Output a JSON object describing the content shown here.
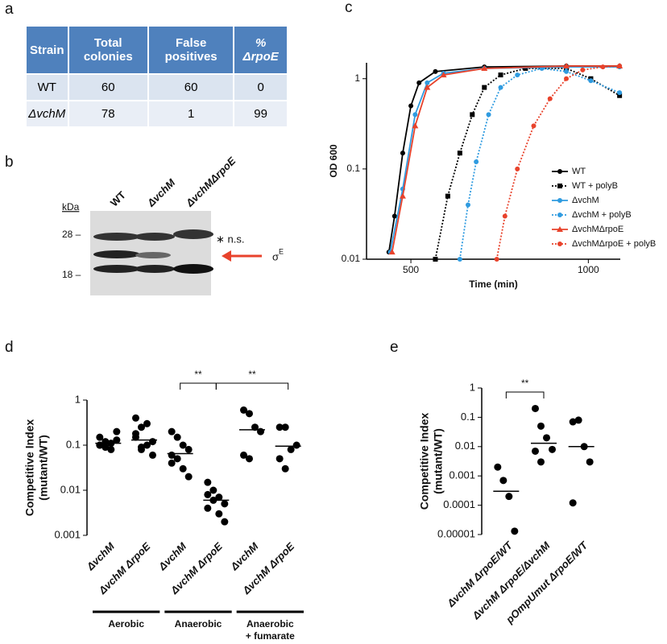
{
  "panel_labels": [
    "a",
    "b",
    "c",
    "d",
    "e"
  ],
  "table": {
    "header": [
      "Strain",
      "Total colonies",
      "False positives",
      "% ΔrpoE"
    ],
    "rows": [
      [
        "WT",
        60,
        60,
        0
      ],
      [
        "ΔvchM",
        78,
        1,
        99
      ]
    ]
  },
  "blot": {
    "lanes": [
      "WT",
      "ΔvchM",
      "ΔvchMΔrpoE"
    ],
    "unit": "kDa",
    "markers": [
      "28 –",
      "18 –"
    ],
    "nonspecific": "∗ n.s.",
    "sigma": "σ",
    "sigma_sup": "E"
  },
  "chart_data": [
    {
      "type": "line",
      "ylabel": "OD 600",
      "xlabel": "Time (min)",
      "log_y": true,
      "xlim": [
        375,
        1090
      ],
      "ylim": [
        0.01,
        1.5
      ],
      "xticks": [
        500,
        1000
      ],
      "yticks": [
        0.01,
        0.1,
        1
      ],
      "series": [
        {
          "name": "WT",
          "color": "#000000",
          "line": "solid",
          "marker": "circle",
          "x": [
            438,
            454,
            477,
            500,
            523,
            569,
            707,
            938,
            1088
          ],
          "values": [
            0.012,
            0.03,
            0.15,
            0.5,
            0.9,
            1.2,
            1.35,
            1.38,
            1.38
          ]
        },
        {
          "name": "WT + polyB",
          "color": "#000000",
          "line": "dotted",
          "marker": "square",
          "x": [
            569,
            604,
            638,
            673,
            707,
            753,
            823,
            938,
            1007,
            1088
          ],
          "values": [
            0.01,
            0.05,
            0.15,
            0.4,
            0.8,
            1.1,
            1.3,
            1.3,
            1.0,
            0.65
          ]
        },
        {
          "name": "ΔvchM",
          "color": "#2f9be0",
          "line": "solid",
          "marker": "circle",
          "x": [
            442,
            477,
            512,
            546,
            592,
            707,
            938,
            1088
          ],
          "values": [
            0.012,
            0.06,
            0.4,
            0.9,
            1.15,
            1.3,
            1.35,
            1.35
          ]
        },
        {
          "name": "ΔvchM + polyB",
          "color": "#2f9be0",
          "line": "dotted",
          "marker": "circle",
          "x": [
            638,
            661,
            684,
            719,
            753,
            800,
            869,
            938,
            1007,
            1088
          ],
          "values": [
            0.01,
            0.04,
            0.12,
            0.4,
            0.8,
            1.1,
            1.3,
            1.2,
            0.95,
            0.7
          ]
        },
        {
          "name": "ΔvchMΔrpoE",
          "color": "#e8422b",
          "line": "solid",
          "marker": "triangle",
          "x": [
            447,
            477,
            512,
            546,
            592,
            707,
            938,
            1088
          ],
          "values": [
            0.012,
            0.05,
            0.3,
            0.8,
            1.1,
            1.3,
            1.38,
            1.38
          ]
        },
        {
          "name": "ΔvchMΔrpoE + polyB",
          "color": "#e8422b",
          "line": "dotted",
          "marker": "circle",
          "x": [
            742,
            765,
            800,
            846,
            892,
            938,
            984,
            1041,
            1088
          ],
          "values": [
            0.01,
            0.03,
            0.1,
            0.3,
            0.6,
            1.0,
            1.25,
            1.35,
            1.38
          ]
        }
      ]
    },
    {
      "type": "strip",
      "ylabel": [
        "Competitive Index",
        "(mutant/WT)"
      ],
      "log_y": true,
      "categories": [
        "ΔvchM",
        "ΔvchM ΔrpoE",
        "ΔvchM",
        "ΔvchM ΔrpoE",
        "ΔvchM",
        "ΔvchM ΔrpoE"
      ],
      "groups": [
        [
          "Aerobic"
        ],
        [
          "Anaerobic"
        ],
        [
          "Anaerobic",
          "+ fumarate"
        ]
      ],
      "ylim": [
        0.001,
        1
      ],
      "yticks": [
        0.001,
        0.01,
        0.1,
        1
      ],
      "points": [
        [
          0.1,
          0.12,
          0.08,
          0.2,
          0.15,
          0.09,
          0.11,
          0.13,
          0.1
        ],
        [
          0.4,
          0.25,
          0.3,
          0.12,
          0.15,
          0.08,
          0.1,
          0.06,
          0.18,
          0.09
        ],
        [
          0.2,
          0.15,
          0.1,
          0.08,
          0.06,
          0.05,
          0.03,
          0.02,
          0.04
        ],
        [
          0.015,
          0.01,
          0.007,
          0.005,
          0.004,
          0.006,
          0.003,
          0.002,
          0.008
        ],
        [
          0.6,
          0.5,
          0.25,
          0.2,
          0.06,
          0.05
        ],
        [
          0.25,
          0.25,
          0.08,
          0.1,
          0.05,
          0.03
        ]
      ],
      "medians": [
        0.11,
        0.13,
        0.065,
        0.006,
        0.22,
        0.095
      ],
      "annotations": [
        "**",
        "**"
      ]
    },
    {
      "type": "strip",
      "ylabel": [
        "Competitive Index",
        "(mutant/WT)"
      ],
      "log_y": true,
      "categories": [
        "ΔvchM ΔrpoE/WT",
        "ΔvchM ΔrpoE/ΔvchM",
        "pOmpUmut ΔrpoE/WT"
      ],
      "ylim": [
        1e-05,
        1
      ],
      "yticks": [
        1e-05,
        0.0001,
        0.001,
        0.01,
        0.1,
        1
      ],
      "points": [
        [
          0.002,
          0.0007,
          0.0002,
          1.3e-05
        ],
        [
          0.2,
          0.05,
          0.02,
          0.008,
          0.007,
          0.003
        ],
        [
          0.07,
          0.08,
          0.01,
          0.003,
          0.00012
        ]
      ],
      "medians": [
        0.0003,
        0.013,
        0.01
      ],
      "annotations": [
        "**"
      ]
    }
  ]
}
